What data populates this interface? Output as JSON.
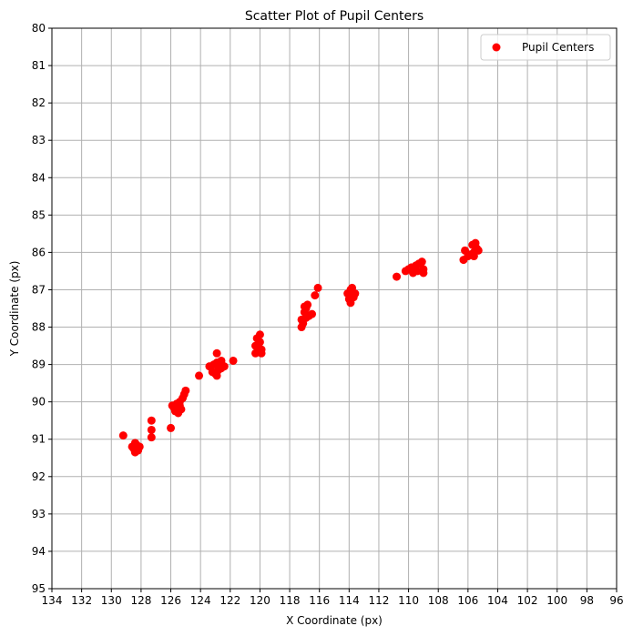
{
  "chart_data": {
    "type": "scatter",
    "title": "Scatter Plot of Pupil Centers",
    "xlabel": "X Coordinate (px)",
    "ylabel": "Y Coordinate (px)",
    "xlim": [
      134,
      96
    ],
    "ylim": [
      95,
      80
    ],
    "x_inverted": true,
    "y_inverted": true,
    "xticks": [
      134,
      132,
      130,
      128,
      126,
      124,
      122,
      120,
      118,
      116,
      114,
      112,
      110,
      108,
      106,
      104,
      102,
      100,
      98,
      96
    ],
    "yticks": [
      80,
      81,
      82,
      83,
      84,
      85,
      86,
      87,
      88,
      89,
      90,
      91,
      92,
      93,
      94,
      95
    ],
    "grid": true,
    "legend": {
      "position": "top-right"
    },
    "series": [
      {
        "name": "Pupil Centers",
        "color": "#ff0000",
        "points": [
          [
            129.2,
            90.9
          ],
          [
            128.6,
            91.2
          ],
          [
            128.4,
            91.35
          ],
          [
            128.2,
            91.3
          ],
          [
            128.5,
            91.25
          ],
          [
            128.3,
            91.15
          ],
          [
            128.1,
            91.2
          ],
          [
            128.4,
            91.1
          ],
          [
            127.3,
            90.5
          ],
          [
            127.3,
            90.75
          ],
          [
            127.3,
            90.95
          ],
          [
            126.0,
            90.7
          ],
          [
            125.9,
            90.1
          ],
          [
            125.7,
            90.25
          ],
          [
            125.5,
            90.3
          ],
          [
            125.4,
            90.0
          ],
          [
            125.2,
            89.9
          ],
          [
            125.3,
            90.2
          ],
          [
            125.6,
            90.05
          ],
          [
            125.1,
            89.8
          ],
          [
            125.0,
            89.7
          ],
          [
            125.8,
            90.15
          ],
          [
            125.4,
            90.1
          ],
          [
            124.1,
            89.3
          ],
          [
            123.4,
            89.05
          ],
          [
            123.2,
            89.2
          ],
          [
            123.0,
            89.25
          ],
          [
            122.8,
            89.15
          ],
          [
            122.6,
            89.1
          ],
          [
            122.4,
            89.05
          ],
          [
            122.9,
            88.95
          ],
          [
            122.6,
            88.9
          ],
          [
            123.1,
            89.0
          ],
          [
            122.9,
            89.3
          ],
          [
            122.9,
            88.7
          ],
          [
            121.8,
            88.9
          ],
          [
            120.3,
            88.7
          ],
          [
            120.3,
            88.5
          ],
          [
            120.2,
            88.3
          ],
          [
            120.0,
            88.2
          ],
          [
            120.0,
            88.4
          ],
          [
            119.9,
            88.6
          ],
          [
            119.9,
            88.7
          ],
          [
            120.1,
            88.55
          ],
          [
            117.2,
            88.0
          ],
          [
            117.2,
            87.8
          ],
          [
            117.0,
            87.6
          ],
          [
            116.9,
            87.5
          ],
          [
            116.8,
            87.4
          ],
          [
            116.7,
            87.7
          ],
          [
            116.5,
            87.65
          ],
          [
            117.1,
            87.9
          ],
          [
            116.9,
            87.75
          ],
          [
            117.0,
            87.45
          ],
          [
            116.3,
            87.15
          ],
          [
            116.1,
            86.95
          ],
          [
            114.1,
            87.1
          ],
          [
            113.9,
            87.0
          ],
          [
            113.8,
            86.95
          ],
          [
            113.7,
            87.2
          ],
          [
            113.9,
            87.35
          ],
          [
            113.6,
            87.1
          ],
          [
            114.0,
            87.25
          ],
          [
            113.8,
            87.05
          ],
          [
            110.8,
            86.65
          ],
          [
            110.2,
            86.5
          ],
          [
            110.0,
            86.45
          ],
          [
            109.8,
            86.4
          ],
          [
            109.7,
            86.55
          ],
          [
            109.5,
            86.35
          ],
          [
            109.3,
            86.3
          ],
          [
            109.1,
            86.25
          ],
          [
            109.0,
            86.45
          ],
          [
            109.0,
            86.55
          ],
          [
            109.4,
            86.5
          ],
          [
            106.3,
            86.2
          ],
          [
            106.2,
            85.95
          ],
          [
            106.0,
            86.1
          ],
          [
            105.8,
            86.05
          ],
          [
            105.7,
            85.8
          ],
          [
            105.6,
            86.0
          ],
          [
            105.5,
            85.75
          ],
          [
            105.4,
            85.9
          ],
          [
            105.3,
            85.95
          ],
          [
            105.6,
            86.1
          ]
        ]
      }
    ]
  }
}
